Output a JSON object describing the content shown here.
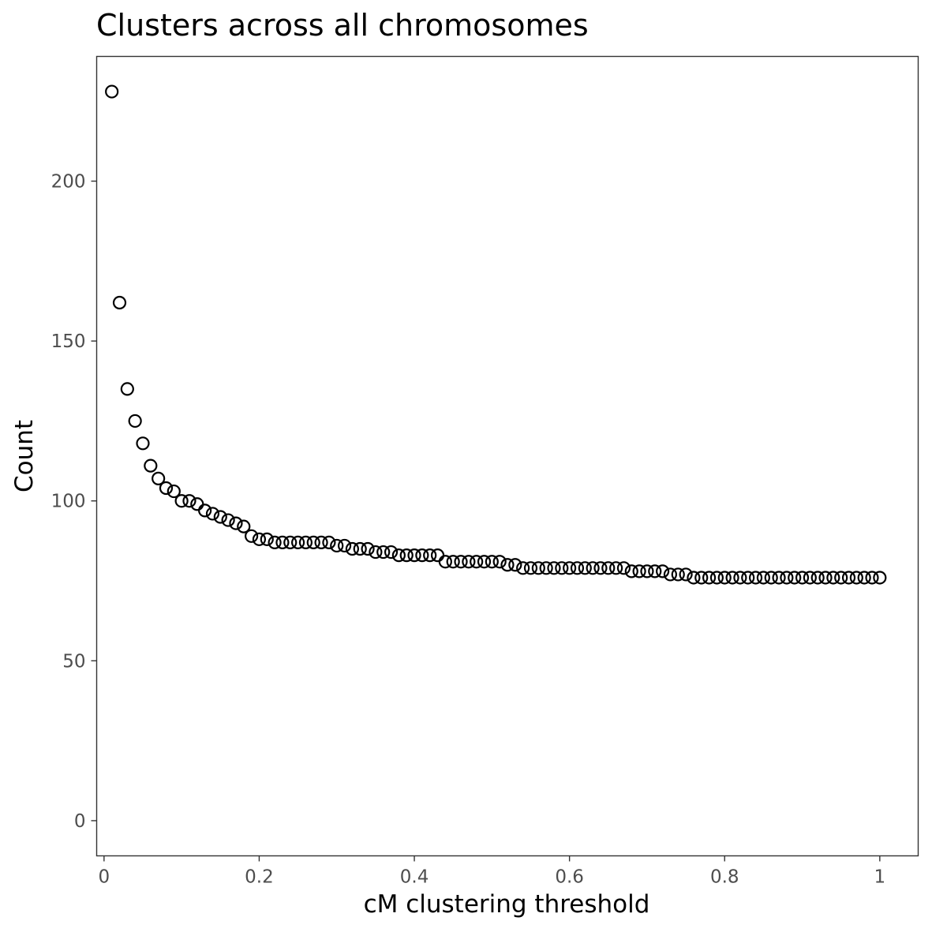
{
  "chart_data": {
    "type": "scatter",
    "title": "Clusters across all chromosomes",
    "xlabel": "cM clustering threshold",
    "ylabel": "Count",
    "xlim": [
      -0.0095,
      1.0495
    ],
    "ylim": [
      -11,
      239
    ],
    "x_ticks": [
      0,
      0.2,
      0.4,
      0.6,
      0.8,
      1
    ],
    "x_tick_labels": [
      "0",
      "0.2",
      "0.4",
      "0.6",
      "0.8",
      "1"
    ],
    "y_ticks": [
      0,
      50,
      100,
      150,
      200
    ],
    "y_tick_labels": [
      "0",
      "50",
      "100",
      "150",
      "200"
    ],
    "grid": false,
    "legend": "none",
    "point_color": "#000000",
    "marker": "open-circle",
    "series": [
      {
        "x": [
          0.01,
          0.02,
          0.03,
          0.04,
          0.05,
          0.06,
          0.07,
          0.08,
          0.09,
          0.1,
          0.11,
          0.12,
          0.13,
          0.14,
          0.15,
          0.16,
          0.17,
          0.18,
          0.19,
          0.2,
          0.21,
          0.22,
          0.23,
          0.24,
          0.25,
          0.26,
          0.27,
          0.28,
          0.29,
          0.3,
          0.31,
          0.32,
          0.33,
          0.34,
          0.35,
          0.36,
          0.37,
          0.38,
          0.39,
          0.4,
          0.41,
          0.42,
          0.43,
          0.44,
          0.45,
          0.46,
          0.47,
          0.48,
          0.49,
          0.5,
          0.51,
          0.52,
          0.53,
          0.54,
          0.55,
          0.56,
          0.57,
          0.58,
          0.59,
          0.6,
          0.61,
          0.62,
          0.63,
          0.64,
          0.65,
          0.66,
          0.67,
          0.68,
          0.69,
          0.7,
          0.71,
          0.72,
          0.73,
          0.74,
          0.75,
          0.76,
          0.77,
          0.78,
          0.79,
          0.8,
          0.81,
          0.82,
          0.83,
          0.84,
          0.85,
          0.86,
          0.87,
          0.88,
          0.89,
          0.9,
          0.91,
          0.92,
          0.93,
          0.94,
          0.95,
          0.96,
          0.97,
          0.98,
          0.99,
          1.0
        ],
        "y": [
          228,
          162,
          135,
          125,
          118,
          111,
          107,
          104,
          103,
          100,
          100,
          99,
          97,
          96,
          95,
          94,
          93,
          92,
          89,
          88,
          88,
          87,
          87,
          87,
          87,
          87,
          87,
          87,
          87,
          86,
          86,
          85,
          85,
          85,
          84,
          84,
          84,
          83,
          83,
          83,
          83,
          83,
          83,
          81,
          81,
          81,
          81,
          81,
          81,
          81,
          81,
          80,
          80,
          79,
          79,
          79,
          79,
          79,
          79,
          79,
          79,
          79,
          79,
          79,
          79,
          79,
          79,
          78,
          78,
          78,
          78,
          78,
          77,
          77,
          77,
          76,
          76,
          76,
          76,
          76,
          76,
          76,
          76,
          76,
          76,
          76,
          76,
          76,
          76,
          76,
          76,
          76,
          76,
          76,
          76,
          76,
          76,
          76,
          76,
          76
        ]
      }
    ]
  }
}
